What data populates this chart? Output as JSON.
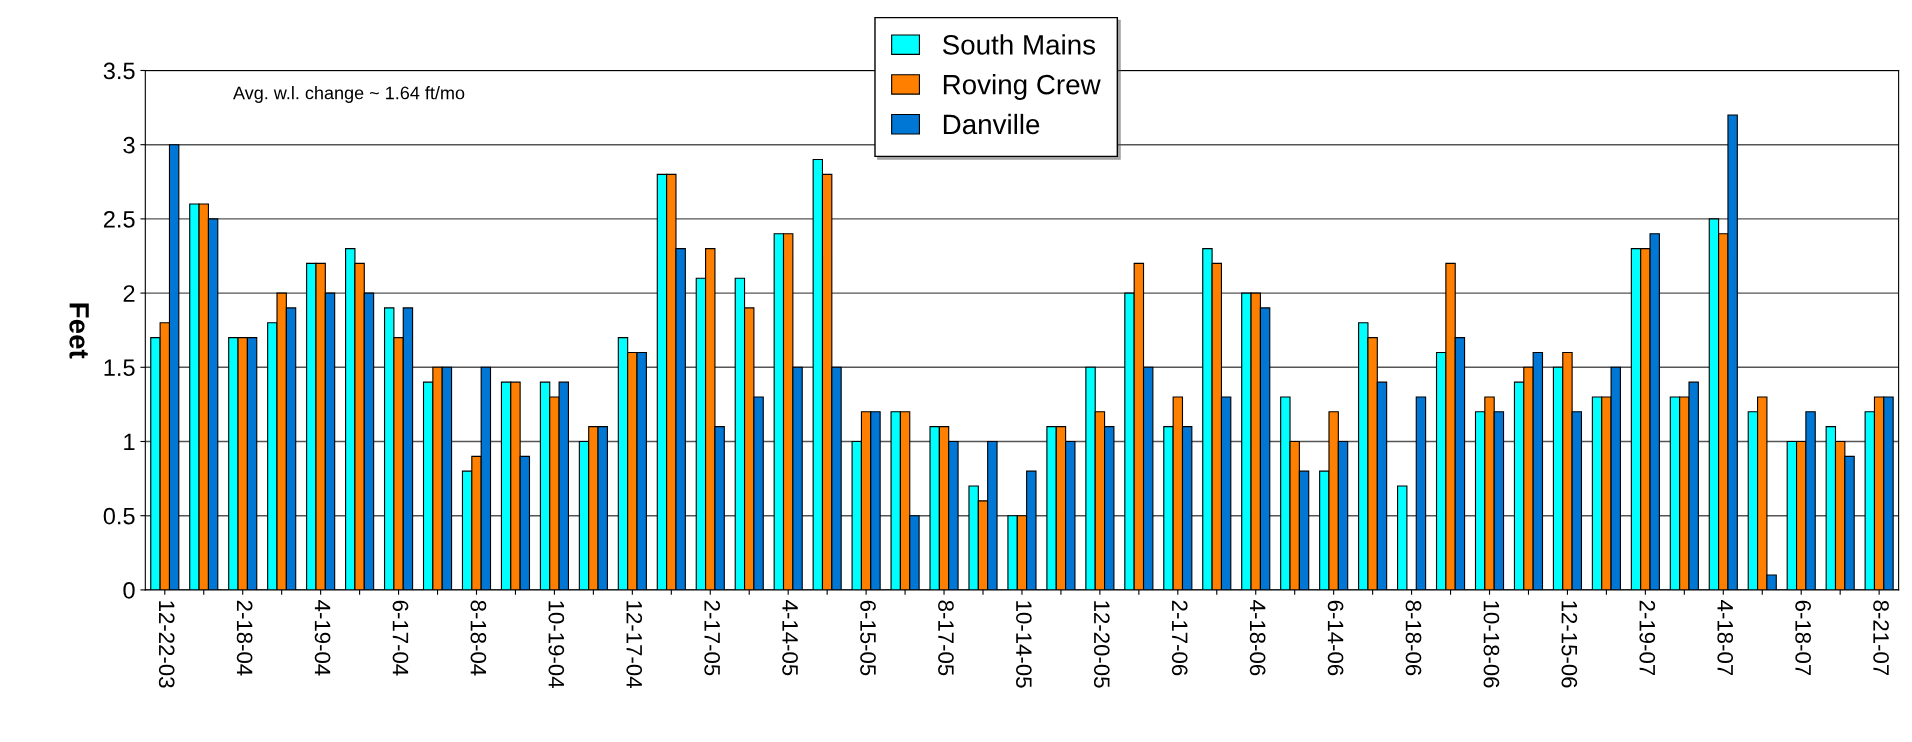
{
  "chart_data": {
    "type": "bar",
    "ylabel": "Feet",
    "categories": [
      "12-22-03",
      null,
      "2-18-04",
      null,
      "4-19-04",
      null,
      "6-17-04",
      null,
      "8-18-04",
      null,
      "10-19-04",
      null,
      "12-17-04",
      null,
      "2-17-05",
      null,
      "4-14-05",
      null,
      "6-15-05",
      null,
      "8-17-05",
      null,
      "10-14-05",
      null,
      "12-20-05",
      null,
      "2-17-06",
      null,
      "4-18-06",
      null,
      "6-14-06",
      null,
      "8-18-06",
      null,
      "10-18-06",
      null,
      "12-15-06",
      null,
      "2-19-07",
      null,
      "4-18-07",
      null,
      "6-18-07",
      null,
      "8-21-07"
    ],
    "series": [
      {
        "name": "South Mains",
        "color": "#00ffff",
        "values": [
          1.7,
          2.6,
          1.7,
          1.8,
          2.2,
          2.3,
          1.9,
          1.4,
          0.8,
          1.4,
          1.4,
          1.0,
          1.7,
          2.8,
          2.1,
          2.1,
          2.4,
          2.9,
          1.0,
          1.2,
          1.1,
          0.7,
          0.5,
          1.1,
          1.5,
          2.0,
          1.1,
          2.3,
          2.0,
          1.3,
          0.8,
          1.8,
          0.7,
          1.6,
          1.2,
          1.4,
          1.5,
          1.3,
          2.3,
          1.3,
          2.5,
          1.2,
          1.0,
          1.1,
          1.2
        ]
      },
      {
        "name": "Roving Crew",
        "color": "#ff7f00",
        "values": [
          1.8,
          2.6,
          1.7,
          2.0,
          2.2,
          2.2,
          1.7,
          1.5,
          0.9,
          1.4,
          1.3,
          1.1,
          1.6,
          2.8,
          2.3,
          1.9,
          2.4,
          2.8,
          1.2,
          1.2,
          1.1,
          0.6,
          0.5,
          1.1,
          1.2,
          2.2,
          1.3,
          2.2,
          2.0,
          1.0,
          1.2,
          1.7,
          null,
          2.2,
          1.3,
          1.5,
          1.6,
          1.3,
          2.3,
          1.3,
          2.4,
          1.3,
          1.0,
          1.0,
          1.3
        ]
      },
      {
        "name": "Danville",
        "color": "#0077d4",
        "values": [
          3.0,
          2.5,
          1.7,
          1.9,
          2.0,
          2.0,
          1.9,
          1.5,
          1.5,
          0.9,
          1.4,
          1.1,
          1.6,
          2.3,
          1.1,
          1.3,
          1.5,
          1.5,
          1.2,
          0.5,
          1.0,
          1.0,
          0.8,
          1.0,
          1.1,
          1.5,
          1.1,
          1.3,
          1.9,
          0.8,
          1.0,
          1.4,
          1.3,
          1.7,
          1.2,
          1.6,
          1.2,
          1.5,
          2.4,
          1.4,
          3.2,
          0.1,
          1.2,
          0.9,
          1.3
        ]
      }
    ],
    "ylim": [
      0,
      3.5
    ],
    "yticks": [
      0,
      0.5,
      1,
      1.5,
      2,
      2.5,
      3,
      3.5
    ],
    "grid": "y",
    "legend": "top",
    "annotations": [
      "Avg. w.l. change ~ 1.64 ft/mo"
    ]
  }
}
